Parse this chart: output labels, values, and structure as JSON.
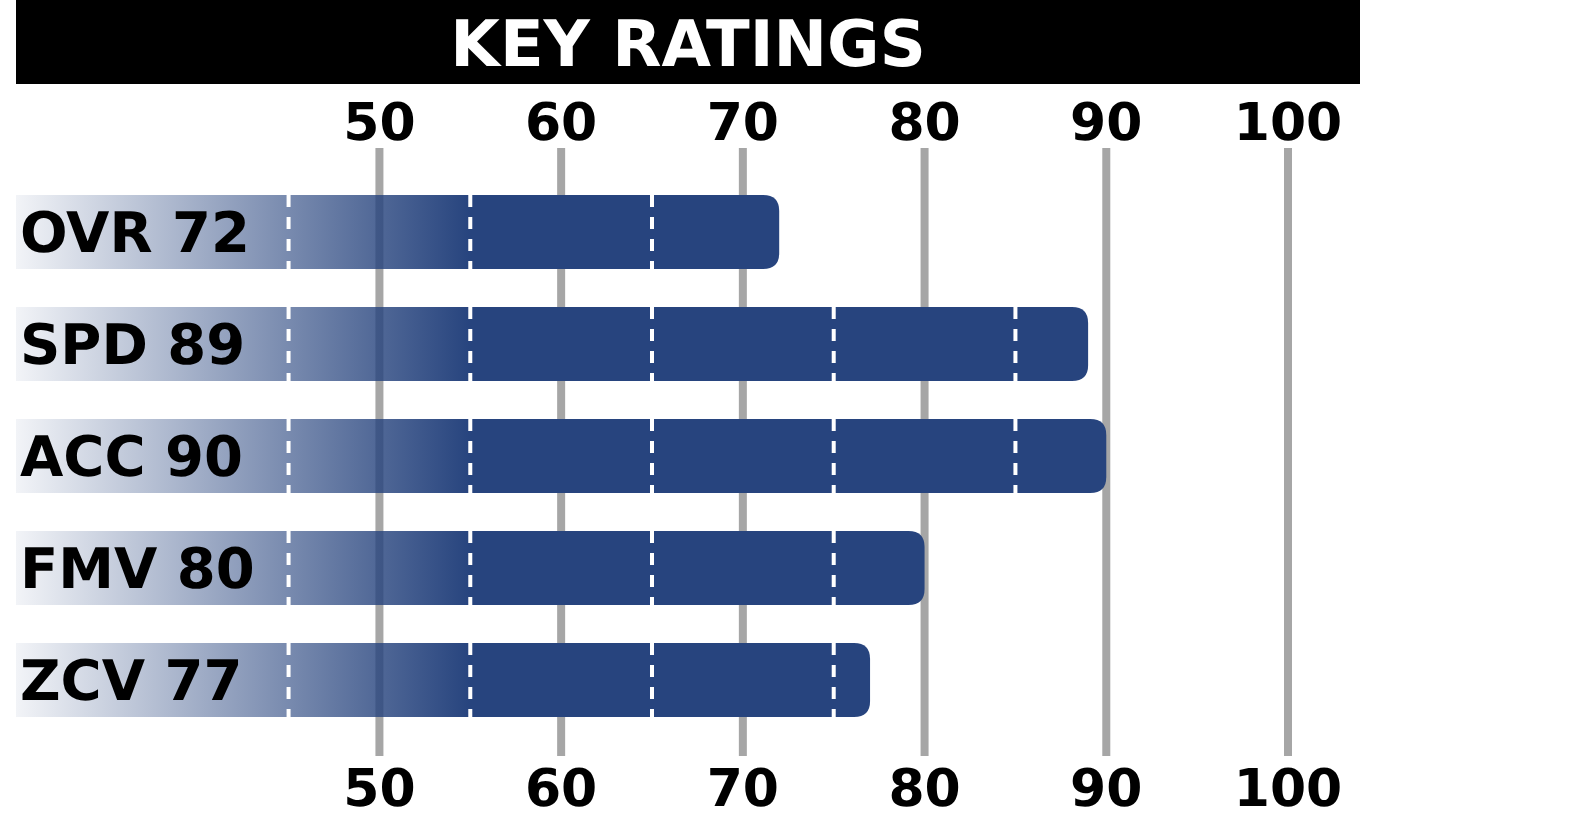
{
  "chart_data": {
    "type": "bar",
    "orientation": "horizontal",
    "title": "KEY RATINGS",
    "categories": [
      "OVR 72",
      "SPD 89",
      "ACC 90",
      "FMV 80",
      "ZCV 77"
    ],
    "values": [
      72,
      89,
      90,
      80,
      77
    ],
    "color": "#27447e",
    "xlim": [
      30,
      100
    ],
    "xticks": [
      50,
      60,
      70,
      80,
      90,
      100
    ],
    "x2lim": [
      30,
      100
    ],
    "x2ticks": [
      50,
      60,
      70,
      80,
      90,
      100
    ],
    "grid": "x"
  }
}
